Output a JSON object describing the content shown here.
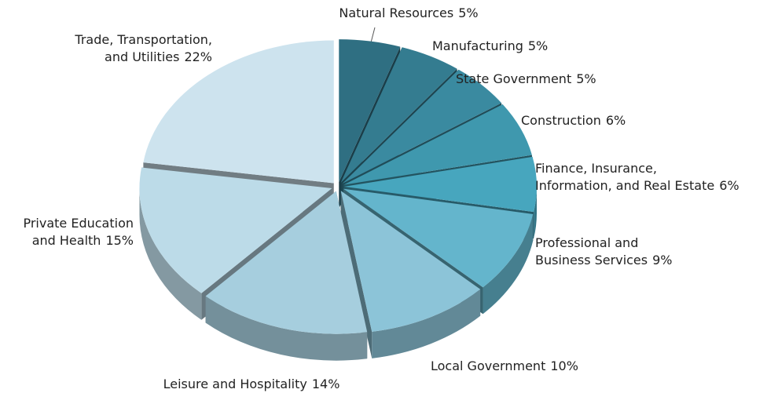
{
  "chart_data": {
    "type": "pie",
    "categories": [
      "Natural Resources",
      "Manufacturing",
      "State Government",
      "Construction",
      "Finance, Insurance,\nInformation, and Real Estate",
      "Professional and\nBusiness Services",
      "Local Government",
      "Leisure and Hospitality",
      "Private Education\nand Health",
      "Trade, Transportation,\nand Utilities"
    ],
    "values": [
      5,
      5,
      5,
      6,
      6,
      9,
      10,
      14,
      15,
      22
    ],
    "value_labels": [
      "5%",
      "5%",
      "5%",
      "6%",
      "6%",
      "9%",
      "10%",
      "14%",
      "15%",
      "22%"
    ],
    "colors": [
      "#2f6f82",
      "#347c90",
      "#3a8aa0",
      "#3f98ae",
      "#47a6be",
      "#64b5cc",
      "#8cc4d8",
      "#a6cede",
      "#bcdbe8",
      "#cde3ee"
    ]
  }
}
